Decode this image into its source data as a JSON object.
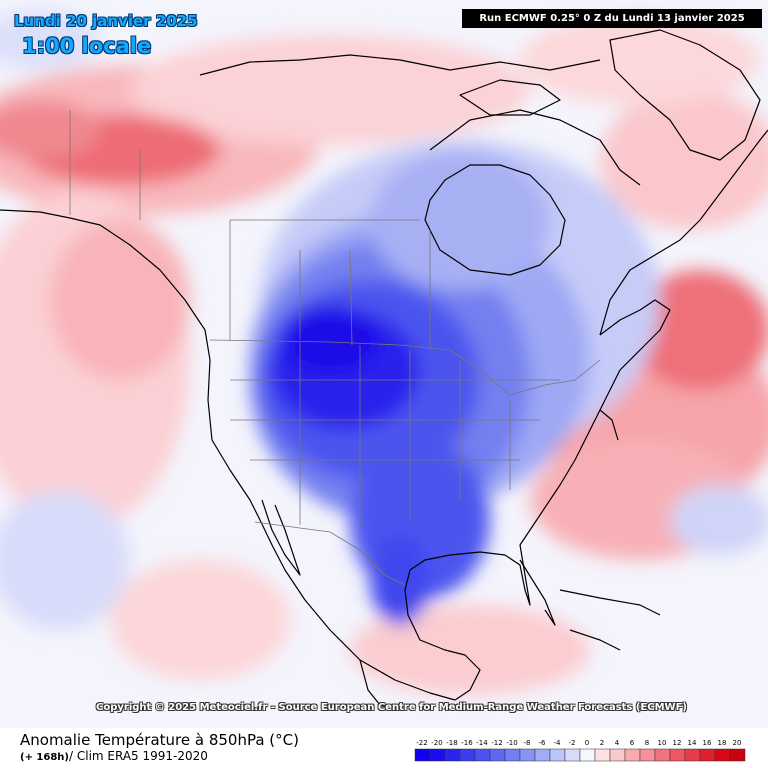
{
  "header": {
    "date_label": "Lundi 20 janvier 2025",
    "hour_label": "1:00 locale",
    "run_label": "Run ECMWF 0.25° 0 Z du Lundi 13 janvier 2025"
  },
  "copyright": "Copyright © 2025 Meteociel.fr - Source European Centre for Medium-Range Weather Forecasts (ECMWF)",
  "footer": {
    "parameter": "Anomalie Température à 850hPa (°C)",
    "lead": "(+ 168h)",
    "climatology": "/ Clim ERA5 1991-2020"
  },
  "legend": {
    "ticks": [
      "-22",
      "-20",
      "-18",
      "-16",
      "-14",
      "-12",
      "-10",
      "-8",
      "-6",
      "-4",
      "-2",
      "0",
      "2",
      "4",
      "6",
      "8",
      "10",
      "12",
      "14",
      "16",
      "18",
      "20"
    ],
    "colors": [
      "#0f00ee",
      "#1a0cf0",
      "#2a24ee",
      "#3c3cee",
      "#4d52f0",
      "#5f68f0",
      "#727ef2",
      "#8794f4",
      "#a0acf6",
      "#bcc4f8",
      "#d8dcfa",
      "#f6f6ff",
      "#fde2e4",
      "#fbc8cc",
      "#f8acb2",
      "#f59098",
      "#f0747e",
      "#ec5862",
      "#e63c48",
      "#e0202e",
      "#d80814",
      "#cc0010"
    ]
  },
  "map": {
    "region": "North America",
    "colors": {
      "ocean_neutral": "#f2f2fd",
      "cold_core": "#1a10e8",
      "warm_core": "#e8323e",
      "coastline": "#000000",
      "borders": "#8a8a8a"
    }
  }
}
